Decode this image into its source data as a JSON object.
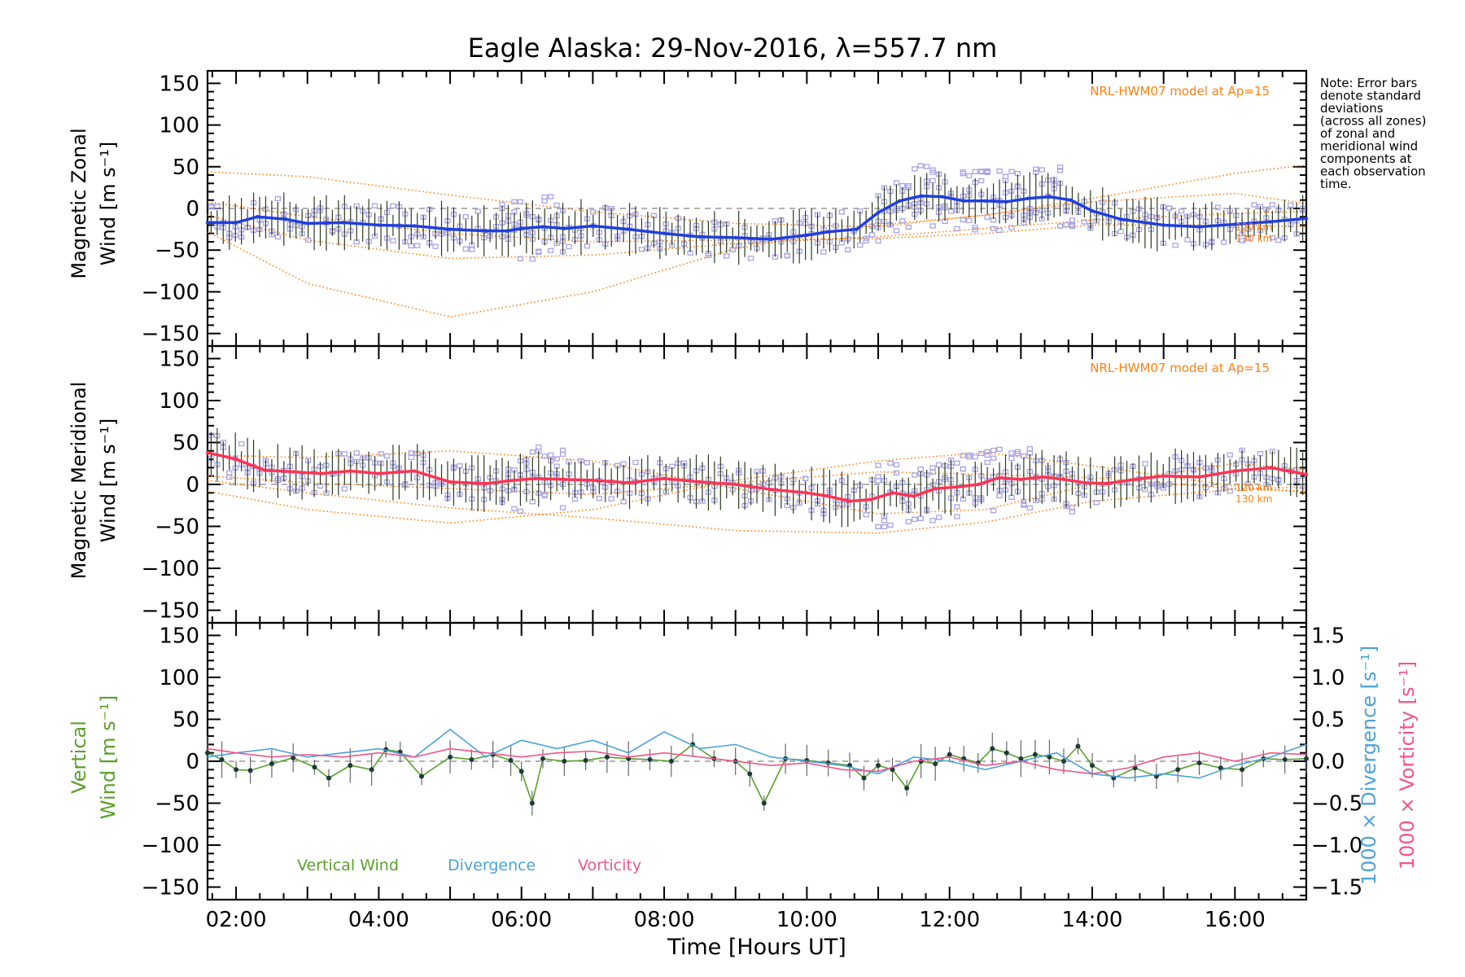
{
  "title": "Eagle Alaska: 29-Nov-2016, λ=557.7 nm",
  "note": [
    "Note: Error bars",
    "denote standard",
    "deviations",
    "(across all zones)",
    "of zonal and",
    "meridional wind",
    "components at",
    "each observation",
    "time."
  ],
  "xlabel": "Time [Hours UT]",
  "colors": {
    "zonal": "#1f3fe0",
    "meridional": "#ff3355",
    "vertical": "#5aa02c",
    "divergence": "#4aa3d8",
    "vorticity": "#f0558a",
    "model": "#ff7f0e",
    "scatter": "#a9a3e3",
    "errorbar": "#2b3a20",
    "dash": "#999999"
  },
  "panels": {
    "zonal": {
      "ylabel1": "Magnetic Zonal",
      "ylabel2": "Wind [m s⁻¹]",
      "model_note": "NRL-HWM07 model at Ap=15",
      "alt_labels": [
        "120 km",
        "130 km"
      ]
    },
    "meridional": {
      "ylabel1": "Magnetic Meridional",
      "ylabel2": "Wind [m s⁻¹]",
      "model_note": "NRL-HWM07 model at Ap=15",
      "alt_labels": [
        "120 km",
        "130 km"
      ]
    },
    "vertical": {
      "ylabel1": "Vertical",
      "ylabel2": "Wind [m s⁻¹]",
      "right_label_divergence": "1000 × Divergence [s⁻¹]",
      "right_label_vorticity": "1000 × Vorticity [s⁻¹]",
      "legend": [
        "Vertical Wind",
        "Divergence",
        "Vorticity"
      ]
    }
  },
  "chart_data": [
    {
      "type": "line",
      "panel": "zonal",
      "xlim": [
        1.6,
        17.0
      ],
      "ylim": [
        -165,
        165
      ],
      "yticks": [
        -150,
        -100,
        -50,
        0,
        50,
        100,
        150
      ],
      "xticks": [
        "02:00",
        "04:00",
        "06:00",
        "08:00",
        "10:00",
        "12:00",
        "14:00",
        "16:00"
      ],
      "series": [
        {
          "role": "wind",
          "x": [
            1.6,
            2.0,
            2.3,
            2.7,
            3.0,
            3.5,
            4.0,
            4.5,
            5.0,
            5.5,
            5.8,
            6.0,
            6.3,
            6.6,
            7.0,
            7.5,
            8.0,
            8.5,
            9.0,
            9.5,
            10.0,
            10.3,
            10.7,
            11.0,
            11.3,
            11.6,
            11.9,
            12.2,
            12.5,
            12.8,
            13.1,
            13.4,
            13.7,
            14.0,
            14.4,
            15.0,
            15.5,
            16.0,
            16.5,
            17.0
          ],
          "y": [
            -17,
            -17,
            -10,
            -13,
            -18,
            -17,
            -20,
            -21,
            -25,
            -27,
            -27,
            -24,
            -22,
            -24,
            -21,
            -25,
            -30,
            -34,
            -35,
            -37,
            -32,
            -28,
            -25,
            -5,
            9,
            15,
            14,
            9,
            9,
            8,
            12,
            14,
            10,
            -3,
            -13,
            -20,
            -22,
            -19,
            -16,
            -12
          ]
        },
        {
          "role": "model",
          "x": [
            1.6,
            3,
            5,
            7,
            9,
            11,
            12.5,
            14,
            16,
            17
          ],
          "y": [
            44,
            38,
            16,
            -4,
            -18,
            -22,
            -8,
            12,
            42,
            52
          ]
        },
        {
          "role": "model",
          "x": [
            1.6,
            3,
            5,
            7,
            9,
            11,
            12.5,
            14,
            16,
            17
          ],
          "y": [
            -28,
            -90,
            -130,
            -100,
            -48,
            -20,
            -8,
            8,
            18,
            6
          ]
        },
        {
          "role": "model",
          "x": [
            1.6,
            3,
            5,
            7,
            9,
            11,
            12.5,
            14,
            16,
            17
          ],
          "y": [
            -8,
            -38,
            -60,
            -56,
            -42,
            -34,
            -24,
            -14,
            -6,
            -4
          ]
        },
        {
          "role": "model",
          "x": [
            1.6,
            3,
            5,
            7,
            9,
            11,
            12.5,
            14,
            16,
            17
          ],
          "y": [
            8,
            -10,
            -30,
            -40,
            -38,
            -36,
            -30,
            -20,
            -20,
            -22
          ]
        }
      ]
    },
    {
      "type": "line",
      "panel": "meridional",
      "xlim": [
        1.6,
        17.0
      ],
      "ylim": [
        -165,
        165
      ],
      "yticks": [
        -150,
        -100,
        -50,
        0,
        50,
        100,
        150
      ],
      "xticks": [
        "02:00",
        "04:00",
        "06:00",
        "08:00",
        "10:00",
        "12:00",
        "14:00",
        "16:00"
      ],
      "series": [
        {
          "role": "wind",
          "x": [
            1.6,
            2.0,
            2.4,
            2.8,
            3.2,
            3.6,
            4.0,
            4.5,
            5.0,
            5.5,
            5.9,
            6.2,
            6.6,
            7.0,
            7.5,
            8.0,
            8.5,
            9.0,
            9.5,
            10.0,
            10.3,
            10.6,
            10.9,
            11.2,
            11.5,
            11.8,
            12.1,
            12.4,
            12.7,
            13.0,
            13.3,
            13.6,
            13.9,
            14.2,
            14.6,
            15.0,
            15.5,
            16.0,
            16.5,
            17.0
          ],
          "y": [
            38,
            30,
            17,
            15,
            13,
            16,
            13,
            16,
            3,
            1,
            5,
            7,
            6,
            5,
            2,
            7,
            3,
            0,
            -6,
            -10,
            -14,
            -20,
            -18,
            -10,
            -14,
            -5,
            -3,
            0,
            8,
            6,
            9,
            6,
            2,
            1,
            6,
            10,
            9,
            16,
            20,
            12
          ]
        },
        {
          "role": "model",
          "x": [
            1.6,
            3,
            5,
            7,
            9,
            11,
            12.5,
            14,
            16,
            17
          ],
          "y": [
            35,
            32,
            40,
            28,
            -5,
            -35,
            -30,
            0,
            25,
            18
          ]
        },
        {
          "role": "model",
          "x": [
            1.6,
            3,
            5,
            7,
            9,
            11,
            12.5,
            14,
            16,
            17
          ],
          "y": [
            -8,
            -30,
            -46,
            -30,
            5,
            28,
            38,
            22,
            -2,
            -10
          ]
        },
        {
          "role": "model",
          "x": [
            1.6,
            3,
            5,
            7,
            9,
            11,
            12.5,
            14,
            16,
            17
          ],
          "y": [
            5,
            -10,
            -28,
            -40,
            -55,
            -58,
            -45,
            -20,
            -6,
            -3
          ]
        },
        {
          "role": "model",
          "x": [
            1.6,
            3,
            5,
            7,
            9,
            11,
            12.5,
            14,
            16,
            17
          ],
          "y": [
            10,
            2,
            -5,
            -12,
            2,
            15,
            12,
            8,
            -5,
            -8
          ]
        }
      ]
    },
    {
      "type": "line",
      "panel": "vertical",
      "xlim": [
        1.6,
        17.0
      ],
      "ylim": [
        -165,
        165
      ],
      "yticks": [
        -150,
        -100,
        -50,
        0,
        50,
        100,
        150
      ],
      "y2lim": [
        -1.65,
        1.65
      ],
      "y2ticks": [
        "-1.5",
        "-1.0",
        "-0.5",
        "0.0",
        "0.5",
        "1.0",
        "1.5"
      ],
      "xticks": [
        "02:00",
        "04:00",
        "06:00",
        "08:00",
        "10:00",
        "12:00",
        "14:00",
        "16:00"
      ],
      "series": [
        {
          "name": "Vertical Wind",
          "axis": "left",
          "x": [
            1.6,
            1.8,
            2.0,
            2.2,
            2.5,
            2.8,
            3.1,
            3.3,
            3.6,
            3.9,
            4.1,
            4.3,
            4.6,
            5.0,
            5.3,
            5.6,
            5.85,
            6.0,
            6.15,
            6.3,
            6.6,
            6.9,
            7.2,
            7.5,
            7.8,
            8.1,
            8.4,
            8.7,
            9.0,
            9.2,
            9.4,
            9.7,
            10.0,
            10.3,
            10.6,
            10.8,
            11.0,
            11.2,
            11.4,
            11.6,
            11.8,
            12.0,
            12.2,
            12.4,
            12.6,
            12.8,
            13.0,
            13.2,
            13.4,
            13.6,
            13.8,
            14.0,
            14.3,
            14.6,
            14.9,
            15.2,
            15.5,
            15.8,
            16.1,
            16.4,
            16.7,
            17.0
          ],
          "y": [
            10,
            2,
            -10,
            -11,
            -3,
            4,
            -7,
            -20,
            -5,
            -10,
            14,
            11,
            -18,
            5,
            2,
            8,
            1,
            -12,
            -50,
            3,
            0,
            1,
            5,
            3,
            2,
            0,
            20,
            3,
            0,
            -15,
            -50,
            3,
            1,
            -2,
            -5,
            -20,
            -5,
            -10,
            -32,
            0,
            -3,
            8,
            3,
            -2,
            15,
            10,
            3,
            8,
            5,
            0,
            18,
            -5,
            -20,
            -8,
            -18,
            -10,
            -2,
            -8,
            -10,
            3,
            2,
            3
          ]
        },
        {
          "name": "Divergence",
          "axis": "right",
          "x": [
            1.6,
            2.0,
            2.5,
            3.0,
            3.5,
            4.0,
            4.5,
            5.0,
            5.5,
            6.0,
            6.5,
            7.0,
            7.5,
            8.0,
            8.5,
            9.0,
            9.5,
            10.0,
            10.5,
            11.0,
            11.5,
            12.0,
            12.5,
            13.0,
            13.5,
            14.0,
            14.5,
            15.0,
            15.5,
            16.0,
            16.5,
            17.0
          ],
          "y": [
            0.05,
            0.1,
            0.15,
            0.05,
            0.1,
            0.15,
            0.05,
            0.38,
            0.05,
            0.25,
            0.15,
            0.25,
            0.1,
            0.35,
            0.15,
            0.2,
            0.05,
            0.0,
            -0.05,
            -0.15,
            0.05,
            0.0,
            -0.1,
            0.0,
            0.1,
            -0.15,
            -0.2,
            -0.15,
            -0.2,
            -0.05,
            0.05,
            0.2
          ]
        },
        {
          "name": "Vorticity",
          "axis": "right",
          "x": [
            1.6,
            2.0,
            2.5,
            3.0,
            3.5,
            4.0,
            4.5,
            5.0,
            5.5,
            6.0,
            6.5,
            7.0,
            7.5,
            8.0,
            8.5,
            9.0,
            9.5,
            10.0,
            10.5,
            11.0,
            11.5,
            12.0,
            12.5,
            13.0,
            13.5,
            14.0,
            14.5,
            15.0,
            15.5,
            16.0,
            16.5,
            17.0
          ],
          "y": [
            0.15,
            0.1,
            0.05,
            0.08,
            0.05,
            0.1,
            0.05,
            0.15,
            0.1,
            0.05,
            0.1,
            0.12,
            0.05,
            0.1,
            0.05,
            0.0,
            -0.05,
            -0.02,
            -0.1,
            -0.12,
            0.0,
            0.05,
            -0.05,
            0.0,
            -0.1,
            -0.15,
            -0.08,
            0.05,
            0.1,
            0.0,
            0.1,
            0.08
          ]
        }
      ]
    }
  ]
}
